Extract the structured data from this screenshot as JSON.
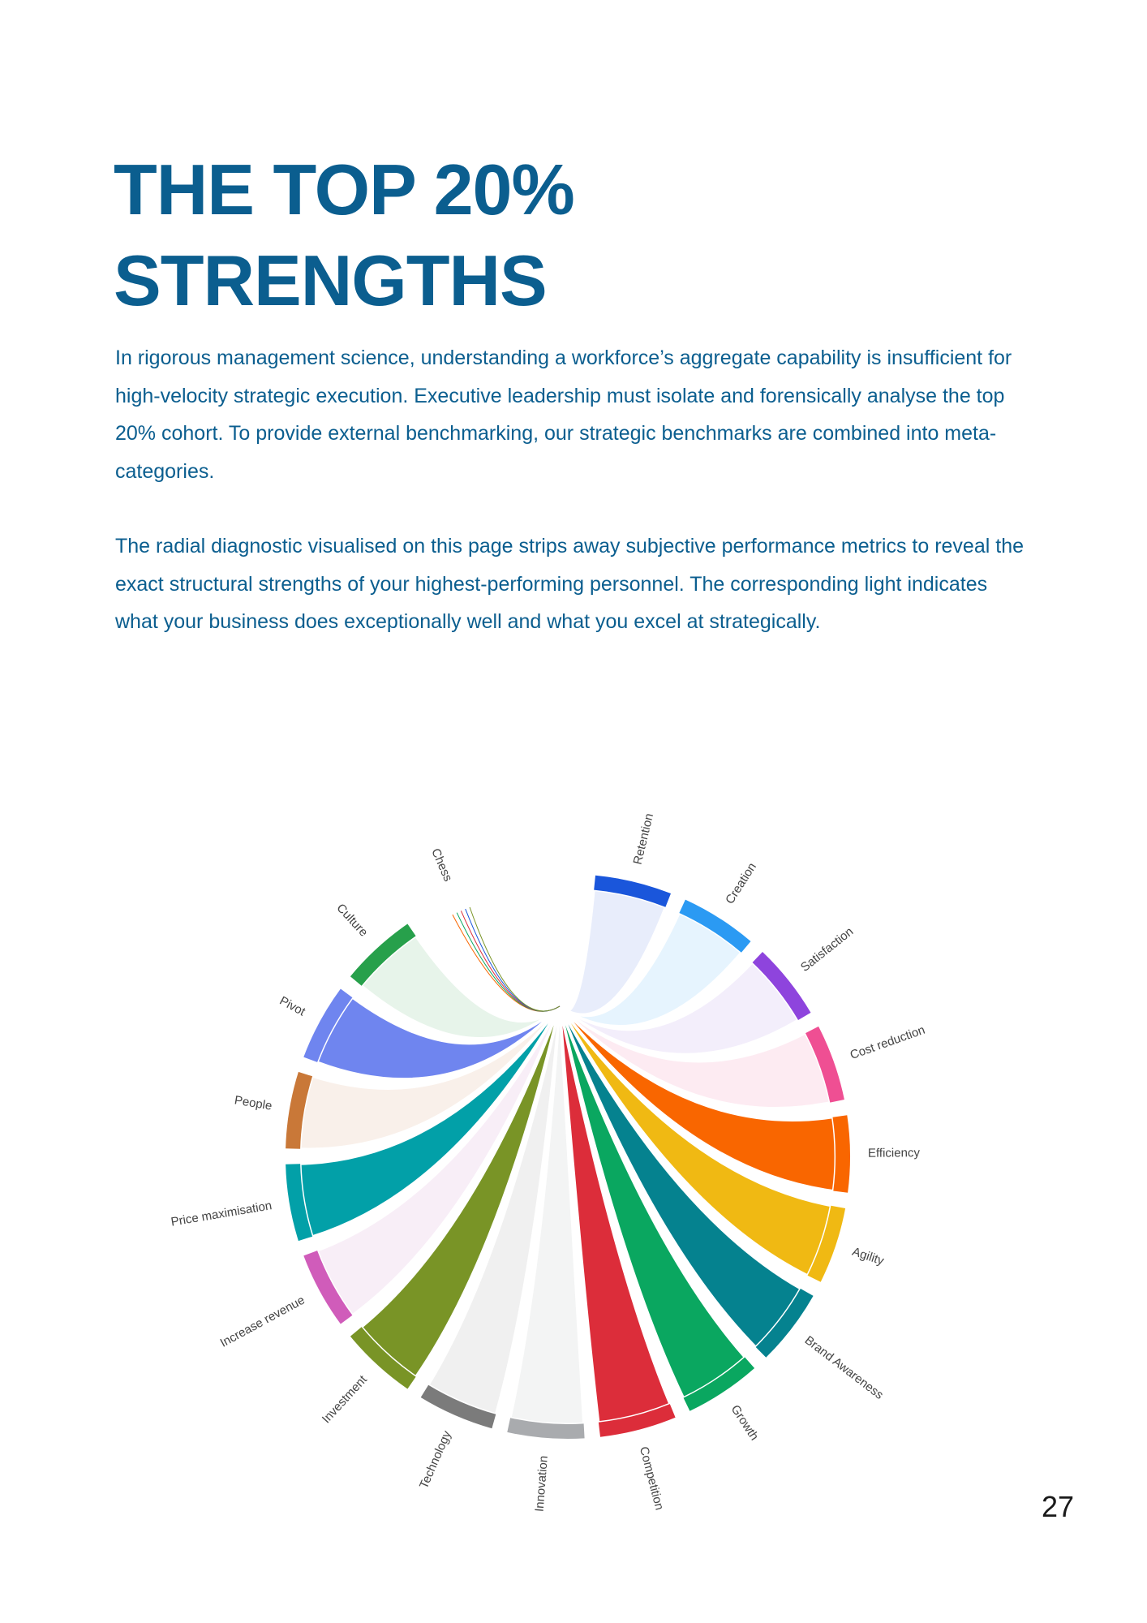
{
  "page": {
    "title_line1": "THE TOP 20%",
    "title_line2": "STRENGTHS",
    "paragraph1": "In rigorous management science, understanding a workforce’s aggregate capability is insufficient for high-velocity strategic execution. Executive leadership must isolate and forensically analyse the top 20% cohort. To provide external benchmarking, our strategic benchmarks are combined into meta-categories.",
    "paragraph2": "The radial diagnostic visualised on this page strips away subjective performance metrics to reveal the exact structural strengths of your highest-performing personnel. The corresponding light indicates what your business does exceptionally well and what you excel at strategically.",
    "page_number": "27"
  },
  "chart_data": {
    "type": "chord",
    "title": "",
    "segments": [
      {
        "name": "Retention",
        "color": "#1a56db",
        "fill": "#e8edfb",
        "emphasized": false
      },
      {
        "name": "Creation",
        "color": "#2b9af3",
        "fill": "#e6f4fe",
        "emphasized": false
      },
      {
        "name": "Satisfaction",
        "color": "#8e44dd",
        "fill": "#f3eefb",
        "emphasized": false
      },
      {
        "name": "Cost reduction",
        "color": "#ef4f93",
        "fill": "#fdebf2",
        "emphasized": false
      },
      {
        "name": "Efficiency",
        "color": "#f96600",
        "fill": "#f96600",
        "emphasized": true
      },
      {
        "name": "Agility",
        "color": "#f0b913",
        "fill": "#f0b913",
        "emphasized": true
      },
      {
        "name": "Brand Awareness",
        "color": "#05828f",
        "fill": "#05828f",
        "emphasized": true
      },
      {
        "name": "Growth",
        "color": "#0aa760",
        "fill": "#0aa760",
        "emphasized": true
      },
      {
        "name": "Competition",
        "color": "#dc2d3a",
        "fill": "#dc2d3a",
        "emphasized": true
      },
      {
        "name": "Innovation",
        "color": "#a9abae",
        "fill": "#f3f4f4",
        "emphasized": false
      },
      {
        "name": "Technology",
        "color": "#7b7b7b",
        "fill": "#f0f0f0",
        "emphasized": false
      },
      {
        "name": "Investment",
        "color": "#799426",
        "fill": "#799426",
        "emphasized": true
      },
      {
        "name": "Increase revenue",
        "color": "#d05cba",
        "fill": "#f8eef7",
        "emphasized": false
      },
      {
        "name": "Price maximisation",
        "color": "#02a0a8",
        "fill": "#02a0a8",
        "emphasized": true
      },
      {
        "name": "People",
        "color": "#c97838",
        "fill": "#f9f0ea",
        "emphasized": false
      },
      {
        "name": "Pivot",
        "color": "#6f85ef",
        "fill": "#6f85ef",
        "emphasized": true
      },
      {
        "name": "Culture",
        "color": "#27a04b",
        "fill": "#e7f4ea",
        "emphasized": false
      },
      {
        "name": "Chess",
        "color": "#9e9e9e",
        "fill": "#f2f2f2",
        "emphasized": false
      }
    ]
  }
}
